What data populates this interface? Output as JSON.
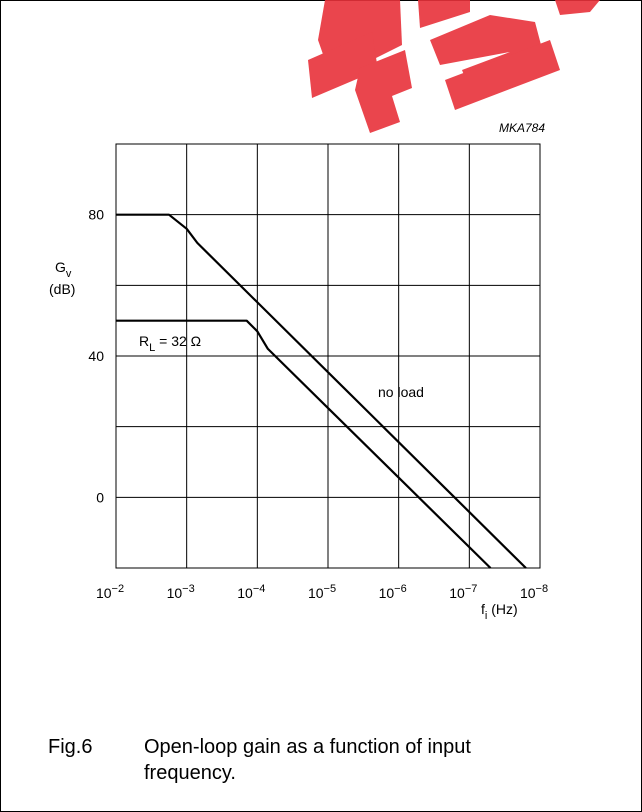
{
  "figure_code": "MKA784",
  "caption": {
    "label": "Fig.6",
    "text": "Open-loop gain as a function of input frequency."
  },
  "chart_data": {
    "type": "line",
    "title": "",
    "ylabel": {
      "symbol": "G",
      "subscript": "v",
      "unit": "(dB)"
    },
    "xlabel": {
      "symbol": "f",
      "subscript": "i",
      "unit": "(Hz)"
    },
    "x_scale": "log",
    "x_exponent_range": [
      -2,
      -8
    ],
    "y_range": [
      -20,
      100
    ],
    "x_tick_exponents": [
      -2,
      -3,
      -4,
      -5,
      -6,
      -7,
      -8
    ],
    "y_tick_labels": [
      {
        "value": 80,
        "label": "80"
      },
      {
        "value": 40,
        "label": "40"
      },
      {
        "value": 0,
        "label": "0"
      }
    ],
    "grid": true,
    "annotations": [
      {
        "text": "no load",
        "series": "no load"
      },
      {
        "text": "= 32 Ω",
        "prefix": "R",
        "subscript": "L",
        "series": "RL = 32 Ω"
      }
    ],
    "series": [
      {
        "name": "no load",
        "x_exponents": [
          -2,
          -2.75,
          -3,
          -3.15,
          -7.8
        ],
        "y": [
          80,
          80,
          76,
          72,
          -20
        ]
      },
      {
        "name": "RL = 32 Ω",
        "x_exponents": [
          -2,
          -3.85,
          -4,
          -4.15,
          -7.3
        ],
        "y": [
          50,
          50,
          47,
          42,
          -20
        ]
      }
    ]
  },
  "colors": {
    "line": "#000000",
    "grid": "#000000",
    "watermark": "#e8313a"
  }
}
